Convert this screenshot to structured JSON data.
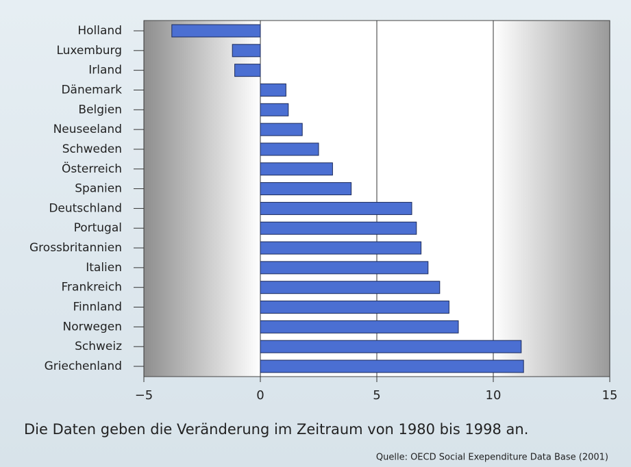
{
  "chart_data": {
    "type": "barh",
    "categories": [
      "Holland",
      "Luxemburg",
      "Irland",
      "Dänemark",
      "Belgien",
      "Neuseeland",
      "Schweden",
      "Österreich",
      "Spanien",
      "Deutschland",
      "Portugal",
      "Grossbritannien",
      "Italien",
      "Frankreich",
      "Finnland",
      "Norwegen",
      "Schweiz",
      "Griechenland"
    ],
    "values": [
      -3.8,
      -1.2,
      -1.1,
      1.1,
      1.2,
      1.8,
      2.5,
      3.1,
      3.9,
      6.5,
      6.7,
      6.9,
      7.2,
      7.7,
      8.1,
      8.5,
      11.2,
      11.3
    ],
    "color": "#4b6fd2",
    "xlim": [
      -5,
      15
    ],
    "xticks": [
      {
        "value": -5,
        "label": "−5"
      },
      0,
      5,
      10,
      15
    ],
    "grid": true,
    "caption": "Die Daten geben die Veränderung im Zeitraum von 1980 bis 1998 an.",
    "source": "Quelle: OECD Social Exependiture Data Base (2001)"
  }
}
